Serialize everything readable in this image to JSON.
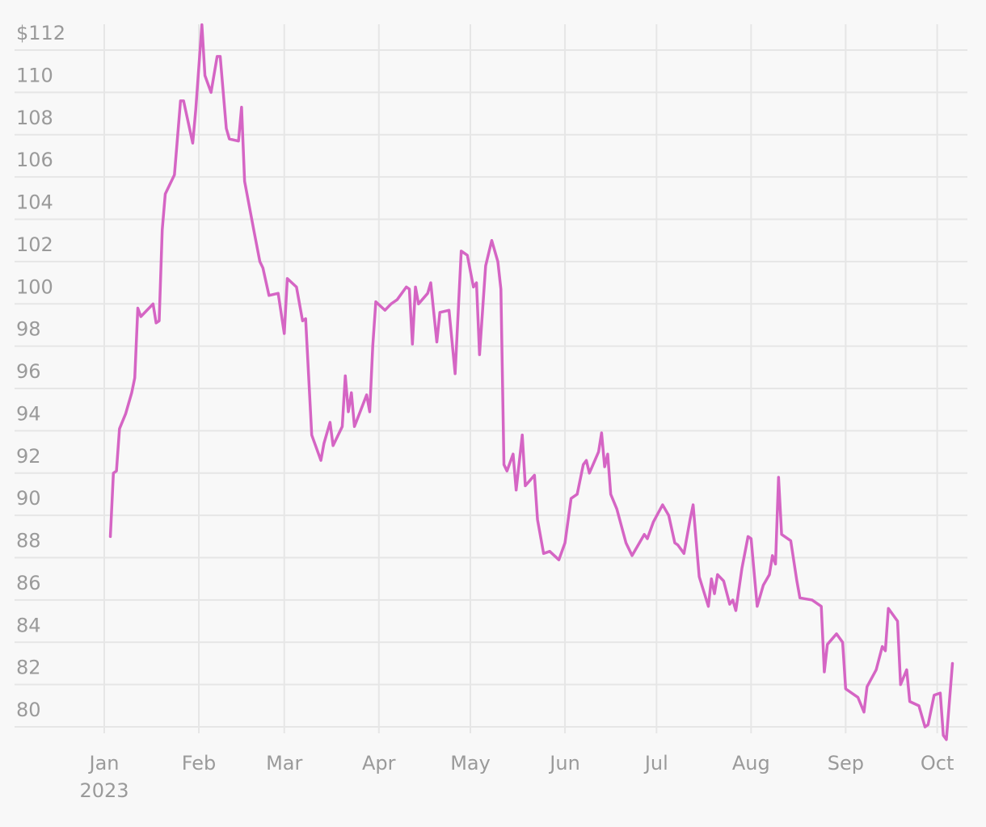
{
  "chart_data": {
    "type": "line",
    "color": "#d565c4",
    "grid": true,
    "year": "2023",
    "x": [
      2,
      3,
      4,
      5,
      7,
      9,
      10,
      11,
      12,
      16,
      17,
      18,
      19,
      20,
      23,
      25,
      26,
      29,
      30,
      32,
      33,
      35,
      37,
      38,
      40,
      41,
      44,
      45,
      46,
      49,
      51,
      52,
      54,
      57,
      59,
      60,
      63,
      65,
      66,
      68,
      71,
      72,
      74,
      75,
      78,
      79,
      80,
      81,
      82,
      86,
      87,
      88,
      89,
      92,
      94,
      96,
      99,
      100,
      101,
      102,
      103,
      106,
      107,
      109,
      110,
      113,
      115,
      117,
      119,
      121,
      122,
      123,
      125,
      127,
      129,
      130,
      131,
      132,
      134,
      135,
      137,
      138,
      141,
      142,
      144,
      146,
      149,
      151,
      153,
      155,
      157,
      158,
      159,
      162,
      163,
      164,
      165,
      166,
      168,
      171,
      173,
      177,
      178,
      180,
      183,
      185,
      187,
      188,
      190,
      192,
      193,
      195,
      198,
      199,
      200,
      201,
      203,
      205,
      206,
      207,
      209,
      211,
      212,
      214,
      216,
      218,
      219,
      220,
      221,
      222,
      225,
      227,
      228,
      232,
      234,
      235,
      236,
      237,
      240,
      242,
      243,
      247,
      249,
      250,
      253,
      255,
      256,
      257,
      260,
      261,
      263,
      264,
      267,
      269,
      270,
      272,
      274,
      275,
      276,
      278
    ],
    "values": [
      89.0,
      92.0,
      92.1,
      94.1,
      94.8,
      95.8,
      96.5,
      99.8,
      99.4,
      100.0,
      99.1,
      99.2,
      103.5,
      105.2,
      106.1,
      109.6,
      109.6,
      107.6,
      109.2,
      113.2,
      110.8,
      110.0,
      111.7,
      111.7,
      108.3,
      107.8,
      107.7,
      109.3,
      105.8,
      103.5,
      102.0,
      101.7,
      100.4,
      100.5,
      98.6,
      101.2,
      100.8,
      99.2,
      99.3,
      93.8,
      92.6,
      93.4,
      94.4,
      93.3,
      94.2,
      96.6,
      94.9,
      95.8,
      94.2,
      95.7,
      94.9,
      98.0,
      100.1,
      99.7,
      100.0,
      100.2,
      100.8,
      100.7,
      98.1,
      100.8,
      100.0,
      100.5,
      101.0,
      98.2,
      99.6,
      99.7,
      96.7,
      102.5,
      102.3,
      100.8,
      101.0,
      97.6,
      101.8,
      103.0,
      102.0,
      100.7,
      92.4,
      92.1,
      92.9,
      91.2,
      93.8,
      91.4,
      91.9,
      89.8,
      88.2,
      88.3,
      87.9,
      88.7,
      90.8,
      91.0,
      92.4,
      92.6,
      92.0,
      93.0,
      93.9,
      92.3,
      92.9,
      91.0,
      90.3,
      88.7,
      88.1,
      89.1,
      88.9,
      89.7,
      90.5,
      90.0,
      88.7,
      88.6,
      88.2,
      89.8,
      90.5,
      87.1,
      85.7,
      87.0,
      86.3,
      87.2,
      86.9,
      85.8,
      86.0,
      85.5,
      87.5,
      89.0,
      88.9,
      85.7,
      86.7,
      87.2,
      88.1,
      87.7,
      91.8,
      89.1,
      88.8,
      86.9,
      86.1,
      86.0,
      85.8,
      85.7,
      82.6,
      83.9,
      84.4,
      84.0,
      81.8,
      81.4,
      80.7,
      81.9,
      82.7,
      83.8,
      83.6,
      85.6,
      85.0,
      82.0,
      82.7,
      81.2,
      81.0,
      80.0,
      80.1,
      81.5,
      81.6,
      79.6,
      79.4,
      83.0
    ],
    "xlim": [
      -29.4,
      282.9
    ],
    "xticks": [
      {
        "value": 0,
        "label": "Jan"
      },
      {
        "value": 31,
        "label": "Feb"
      },
      {
        "value": 59,
        "label": "Mar"
      },
      {
        "value": 90,
        "label": "Apr"
      },
      {
        "value": 120,
        "label": "May"
      },
      {
        "value": 151,
        "label": "Jun"
      },
      {
        "value": 181,
        "label": "Jul"
      },
      {
        "value": 212,
        "label": "Aug"
      },
      {
        "value": 243,
        "label": "Sep"
      },
      {
        "value": 273,
        "label": "Oct"
      }
    ],
    "ylim": [
      79.2,
      113.3
    ],
    "yticks": [
      80,
      82,
      84,
      86,
      88,
      90,
      92,
      94,
      96,
      98,
      100,
      102,
      104,
      106,
      108,
      110,
      {
        "value": 112,
        "label": "$112"
      }
    ]
  }
}
